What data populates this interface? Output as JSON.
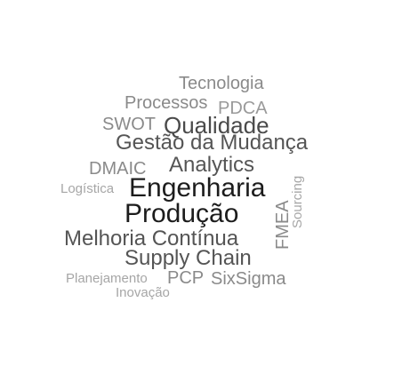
{
  "word_cloud": {
    "words": [
      {
        "key": "tecnologia",
        "text": "Tecnologia",
        "color": "#8a8a8a"
      },
      {
        "key": "processos",
        "text": "Processos",
        "color": "#8a8a8a"
      },
      {
        "key": "pdca",
        "text": "PDCA",
        "color": "#9a9a9a"
      },
      {
        "key": "swot",
        "text": "SWOT",
        "color": "#8a8a8a"
      },
      {
        "key": "qualidade",
        "text": "Qualidade",
        "color": "#4a4a4a"
      },
      {
        "key": "gestao",
        "text": "Gestão da Mudança",
        "color": "#555555"
      },
      {
        "key": "dmaic",
        "text": "DMAIC",
        "color": "#8a8a8a"
      },
      {
        "key": "analytics",
        "text": "Analytics",
        "color": "#555555"
      },
      {
        "key": "logistica",
        "text": "Logística",
        "color": "#a6a6a6"
      },
      {
        "key": "engenharia",
        "text": "Engenharia",
        "color": "#1c1c1c"
      },
      {
        "key": "producao",
        "text": "Produção",
        "color": "#1c1c1c"
      },
      {
        "key": "melhoria",
        "text": "Melhoria Contínua",
        "color": "#555555"
      },
      {
        "key": "supply",
        "text": "Supply Chain",
        "color": "#555555"
      },
      {
        "key": "planejamento",
        "text": "Planejamento",
        "color": "#a6a6a6"
      },
      {
        "key": "pcp",
        "text": "PCP",
        "color": "#8a8a8a"
      },
      {
        "key": "sixsigma",
        "text": "SixSigma",
        "color": "#8a8a8a"
      },
      {
        "key": "inovacao",
        "text": "Inovação",
        "color": "#a6a6a6"
      },
      {
        "key": "fmea",
        "text": "FMEA",
        "color": "#8a8a8a"
      },
      {
        "key": "sourcing",
        "text": "Sourcing",
        "color": "#a6a6a6"
      }
    ]
  }
}
